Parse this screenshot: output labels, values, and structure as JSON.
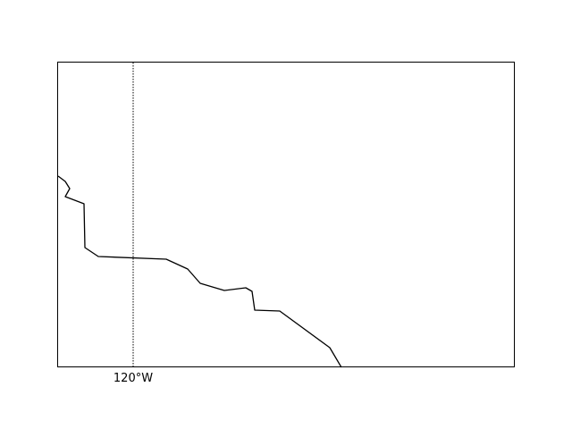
{
  "map": {
    "meridians": [
      {
        "label": "120°W"
      }
    ],
    "colors": {
      "frame": "#000000",
      "coastline": "#000000",
      "gridline": "#000000",
      "background": "#ffffff"
    },
    "gridline_style": "dotted",
    "features": [
      "coastline"
    ]
  }
}
